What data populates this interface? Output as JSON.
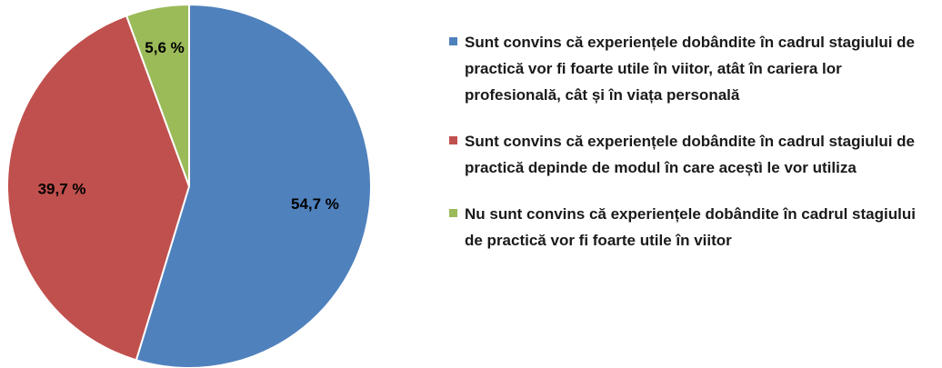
{
  "chart_data": {
    "type": "pie",
    "categories": [
      "Sunt convins că experiențele dobândite în cadrul stagiului de practică vor fi foarte utile în viitor, atât în cariera lor profesională, cât și în viața personală",
      "Sunt convins că experiențele dobândite în cadrul stagiului de practică depinde de modul în care aceștì le vor utiliza",
      "Nu sunt convins că experiențele dobândite în cadrul stagiului de practică vor fi foarte utile în viitor"
    ],
    "values": [
      54.7,
      39.7,
      5.6
    ],
    "value_labels": [
      "54,7 %",
      "39,7 %",
      "5,6 %"
    ],
    "colors": [
      "#4f81bd",
      "#c0504d",
      "#9bbb59"
    ],
    "legend": "right"
  }
}
